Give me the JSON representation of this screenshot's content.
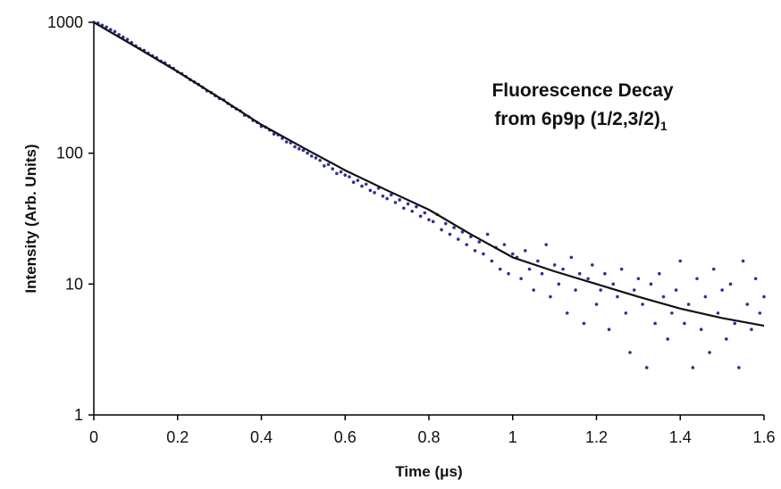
{
  "chart_data": {
    "type": "scatter",
    "title": [
      "Fluorescence Decay",
      "from 6p9p (1/2,3/2)"
    ],
    "title_subscript": "1",
    "x_label": "Time (μs)",
    "y_label": "Intensity (Arb. Units)",
    "log_y": true,
    "xlim": [
      0,
      1.6
    ],
    "xticks": [
      0,
      0.2,
      0.4,
      0.6,
      0.8,
      1,
      1.2,
      1.4,
      1.6
    ],
    "ylim": [
      1,
      1000
    ],
    "yticks": [
      1,
      10,
      100,
      1000
    ],
    "scatter": {
      "color": "#2e3192",
      "x": [
        0,
        0.01,
        0.02,
        0.03,
        0.04,
        0.05,
        0.06,
        0.07,
        0.08,
        0.09,
        0.1,
        0.11,
        0.12,
        0.13,
        0.14,
        0.15,
        0.16,
        0.17,
        0.18,
        0.19,
        0.2,
        0.21,
        0.22,
        0.23,
        0.24,
        0.25,
        0.26,
        0.27,
        0.28,
        0.29,
        0.3,
        0.31,
        0.32,
        0.33,
        0.34,
        0.35,
        0.36,
        0.37,
        0.38,
        0.39,
        0.4,
        0.41,
        0.42,
        0.43,
        0.44,
        0.45,
        0.46,
        0.47,
        0.48,
        0.49,
        0.5,
        0.51,
        0.52,
        0.53,
        0.54,
        0.55,
        0.56,
        0.57,
        0.58,
        0.59,
        0.6,
        0.61,
        0.62,
        0.63,
        0.64,
        0.65,
        0.66,
        0.67,
        0.68,
        0.69,
        0.7,
        0.71,
        0.72,
        0.73,
        0.74,
        0.75,
        0.76,
        0.77,
        0.78,
        0.79,
        0.8,
        0.81,
        0.82,
        0.83,
        0.84,
        0.85,
        0.86,
        0.87,
        0.88,
        0.89,
        0.9,
        0.91,
        0.92,
        0.93,
        0.94,
        0.95,
        0.96,
        0.97,
        0.98,
        0.99,
        1,
        1.01,
        1.02,
        1.03,
        1.04,
        1.05,
        1.06,
        1.07,
        1.08,
        1.09,
        1.1,
        1.11,
        1.12,
        1.13,
        1.14,
        1.15,
        1.16,
        1.17,
        1.18,
        1.19,
        1.2,
        1.21,
        1.22,
        1.23,
        1.24,
        1.25,
        1.26,
        1.27,
        1.28,
        1.29,
        1.3,
        1.31,
        1.32,
        1.33,
        1.34,
        1.35,
        1.36,
        1.37,
        1.38,
        1.39,
        1.4,
        1.41,
        1.42,
        1.43,
        1.44,
        1.45,
        1.46,
        1.47,
        1.48,
        1.49,
        1.5,
        1.51,
        1.52,
        1.53,
        1.54,
        1.55,
        1.56,
        1.57,
        1.58,
        1.59,
        1.6
      ],
      "values": [
        1000,
        985,
        950,
        920,
        880,
        850,
        805,
        770,
        740,
        700,
        660,
        630,
        610,
        580,
        555,
        535,
        505,
        490,
        465,
        445,
        420,
        405,
        385,
        365,
        350,
        335,
        318,
        300,
        290,
        275,
        262,
        255,
        240,
        228,
        218,
        210,
        195,
        190,
        178,
        172,
        160,
        158,
        150,
        140,
        138,
        130,
        122,
        120,
        112,
        108,
        105,
        100,
        95,
        92,
        88,
        80,
        82,
        76,
        70,
        72,
        68,
        66,
        60,
        62,
        56,
        58,
        52,
        50,
        54,
        47,
        45,
        48,
        42,
        44,
        38,
        41,
        36,
        39,
        33,
        35,
        31,
        30,
        34,
        26,
        29,
        24,
        27,
        22,
        25,
        20,
        23,
        18,
        21,
        17,
        24,
        15,
        19,
        13,
        20,
        12,
        17,
        16,
        11,
        18,
        13,
        9,
        15,
        12,
        20,
        8,
        14,
        10,
        13,
        6,
        16,
        9,
        12,
        5,
        11,
        14,
        7,
        9,
        12,
        4.5,
        10,
        8,
        13,
        6,
        3,
        9,
        11,
        7,
        2.3,
        10,
        5,
        12,
        8,
        3.8,
        6,
        9,
        15,
        5,
        7,
        2.3,
        11,
        4.5,
        8,
        3,
        13,
        6,
        9,
        3.8,
        10,
        5,
        2.3,
        15,
        7,
        4.5,
        11,
        6,
        8
      ]
    },
    "fit": {
      "color": "#111111",
      "x": [
        0,
        0.1,
        0.2,
        0.3,
        0.4,
        0.5,
        0.6,
        0.7,
        0.8,
        0.9,
        1,
        1.1,
        1.2,
        1.3,
        1.4,
        1.5,
        1.6
      ],
      "values": [
        1000,
        650,
        420,
        265,
        165,
        110,
        74,
        52,
        37,
        24,
        16,
        12.5,
        10,
        8,
        6.5,
        5.5,
        4.8
      ]
    }
  }
}
